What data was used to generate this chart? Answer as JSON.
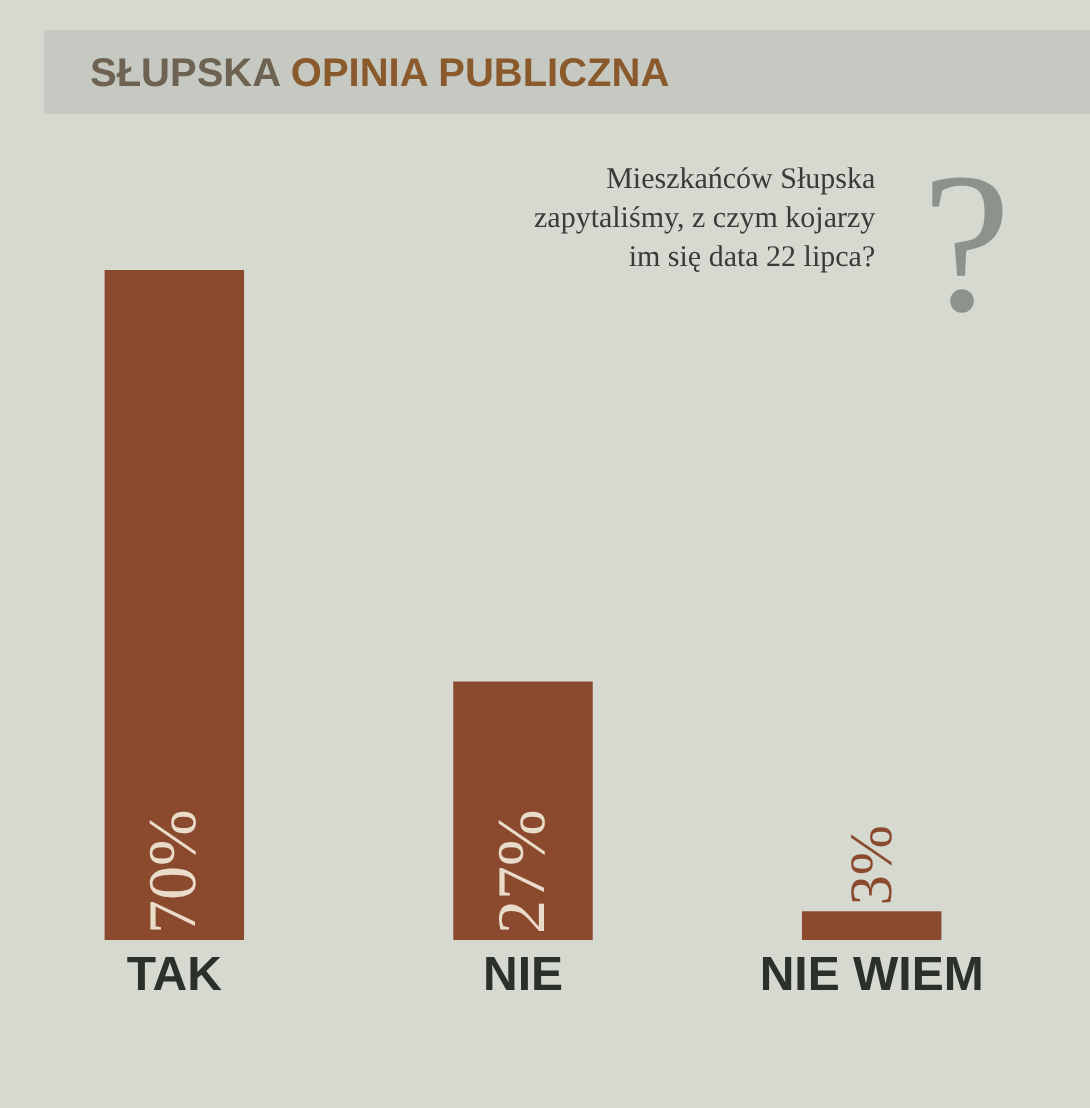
{
  "chart_data": {
    "type": "bar",
    "title": "SŁUPSKA OPINIA PUBLICZNA",
    "subtitle": "Mieszkańców Słupska zapytaliśmy, z czym kojarzy im się data 22 lipca?",
    "annotations": [
      "?"
    ],
    "categories": [
      "TAK",
      "NIE",
      "NIE WIEM"
    ],
    "values": [
      70,
      27,
      3
    ],
    "value_labels": [
      "70%",
      "27%",
      "3%"
    ],
    "color": "#8b4a2e"
  }
}
